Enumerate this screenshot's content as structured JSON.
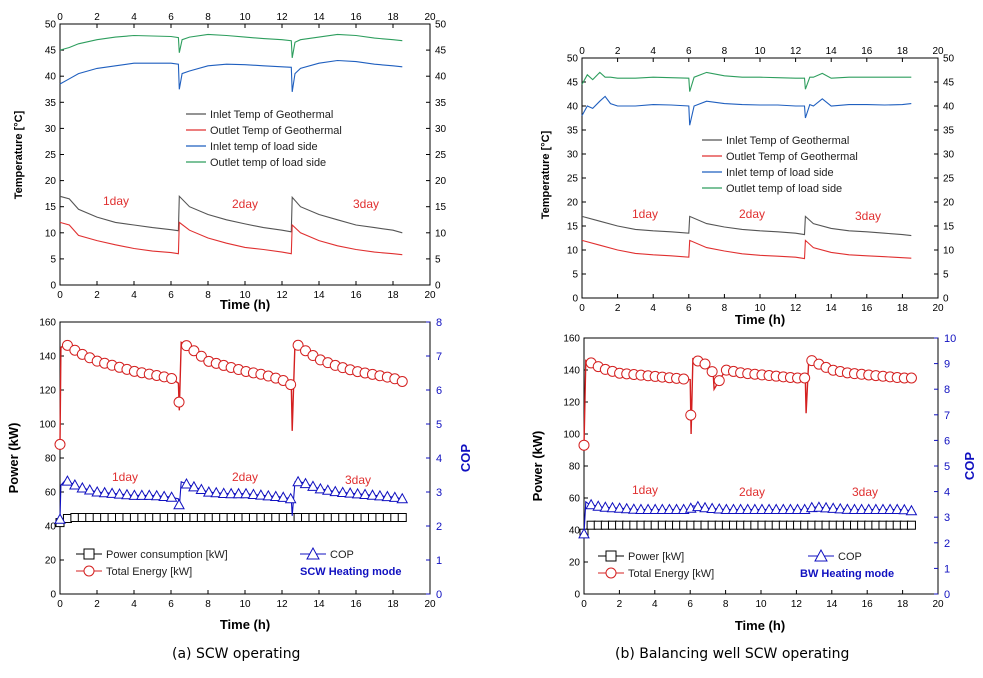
{
  "captions": {
    "a": "(a) SCW operating",
    "b": "(b) Balancing well SCW operating"
  },
  "colors": {
    "inlet_geo": "#555555",
    "outlet_geo": "#e03030",
    "inlet_load": "#1f5fbf",
    "outlet_load": "#2e9e5e",
    "cop": "#1010c0",
    "power": "#000000",
    "energy": "#d42020"
  },
  "chart_data": [
    {
      "id": "a_temp",
      "type": "line",
      "xlabel": "Time (h)",
      "ylabel": "Temperature [°C]",
      "xlim": [
        0,
        20
      ],
      "ylim": [
        0,
        50
      ],
      "x_ticks": [
        "0",
        "2",
        "4",
        "6",
        "8",
        "10",
        "12",
        "14",
        "16",
        "18",
        "20"
      ],
      "y_ticks": [
        "0",
        "5",
        "10",
        "15",
        "20",
        "25",
        "30",
        "35",
        "40",
        "45",
        "50"
      ],
      "legend": [
        "Inlet Temp of Geothermal",
        "Outlet Temp of Geothermal",
        "Inlet temp of load side",
        "Outlet temp of load side"
      ],
      "annotations": [
        "1day",
        "2day",
        "3day"
      ],
      "series": [
        {
          "name": "Inlet Temp of Geothermal",
          "x": [
            0,
            0.5,
            1,
            2,
            3,
            4,
            5,
            6,
            6.4,
            6.45,
            7,
            8,
            9,
            10,
            11,
            12,
            12.5,
            12.55,
            13,
            14,
            15,
            16,
            17,
            18,
            18.5
          ],
          "y": [
            17,
            16.5,
            14.5,
            13,
            12,
            11.5,
            11,
            10.6,
            10.4,
            17,
            15,
            13.5,
            12.5,
            11.7,
            11,
            10.5,
            10.2,
            16.8,
            15,
            13.5,
            12.5,
            11.5,
            11,
            10.5,
            10
          ]
        },
        {
          "name": "Outlet Temp of Geothermal",
          "x": [
            0,
            0.5,
            1,
            2,
            3,
            4,
            5,
            6,
            6.4,
            6.45,
            7,
            8,
            9,
            10,
            11,
            12,
            12.5,
            12.55,
            13,
            14,
            15,
            16,
            17,
            18,
            18.5
          ],
          "y": [
            12,
            11.5,
            9.5,
            8.5,
            7.7,
            7,
            6.5,
            6.2,
            6,
            12,
            10.5,
            9,
            8,
            7.2,
            6.8,
            6.3,
            6,
            11.5,
            10,
            8.5,
            7.5,
            6.8,
            6.3,
            6,
            5.8
          ]
        },
        {
          "name": "Inlet temp of load side",
          "x": [
            0,
            0.5,
            1,
            2,
            3,
            4,
            5,
            6,
            6.4,
            6.45,
            6.6,
            7,
            8,
            9,
            10,
            11,
            12,
            12.5,
            12.55,
            12.7,
            13,
            14,
            15,
            16,
            17,
            18,
            18.5
          ],
          "y": [
            38.5,
            39.5,
            40.5,
            41.5,
            42,
            42.5,
            42.5,
            42.5,
            42.3,
            37.5,
            40.5,
            41,
            42,
            42.3,
            42.2,
            42,
            41.8,
            41.7,
            37,
            40.5,
            41.5,
            42.5,
            43,
            42.8,
            42.3,
            42,
            41.8
          ]
        },
        {
          "name": "Outlet temp of load side",
          "x": [
            0,
            0.5,
            1,
            2,
            3,
            4,
            5,
            6,
            6.4,
            6.45,
            6.6,
            7,
            8,
            9,
            10,
            11,
            12,
            12.5,
            12.55,
            12.7,
            13,
            14,
            15,
            16,
            17,
            18,
            18.5
          ],
          "y": [
            45,
            45.5,
            46.2,
            47,
            47.5,
            47.8,
            47.7,
            47.6,
            47.4,
            44.5,
            47,
            47.5,
            48,
            47.8,
            47.5,
            47.2,
            47,
            46.8,
            43.5,
            46.5,
            47,
            47.5,
            48,
            47.8,
            47.3,
            47,
            46.8
          ]
        }
      ]
    },
    {
      "id": "b_temp",
      "type": "line",
      "xlabel": "Time (h)",
      "ylabel": "Temperature [°C]",
      "xlim": [
        0,
        20
      ],
      "ylim": [
        0,
        50
      ],
      "x_ticks": [
        "0",
        "2",
        "4",
        "6",
        "8",
        "10",
        "12",
        "14",
        "16",
        "18",
        "20"
      ],
      "y_ticks": [
        "0",
        "5",
        "10",
        "15",
        "20",
        "25",
        "30",
        "35",
        "40",
        "45",
        "50"
      ],
      "legend": [
        "Inlet Temp of Geothermal",
        "Outlet Temp of Geothermal",
        "Inlet temp of load side",
        "Outlet temp of load side"
      ],
      "annotations": [
        "1day",
        "2day",
        "3day"
      ],
      "series": [
        {
          "name": "Inlet Temp of Geothermal",
          "x": [
            0,
            1,
            2,
            3,
            4,
            5,
            6,
            6.05,
            7,
            8,
            9,
            10,
            11,
            12,
            12.5,
            12.55,
            13,
            14,
            15,
            16,
            17,
            18,
            18.5
          ],
          "y": [
            17,
            16,
            15,
            14.3,
            14,
            13.8,
            13.5,
            17,
            15.5,
            14.8,
            14.3,
            14,
            13.8,
            13.5,
            13.2,
            17,
            15.5,
            14.5,
            14,
            13.8,
            13.5,
            13.2,
            13
          ]
        },
        {
          "name": "Outlet Temp of Geothermal",
          "x": [
            0,
            1,
            2,
            3,
            4,
            5,
            6,
            6.05,
            7,
            8,
            9,
            10,
            11,
            12,
            12.5,
            12.55,
            13,
            14,
            15,
            16,
            17,
            18,
            18.5
          ],
          "y": [
            12,
            11,
            10,
            9.3,
            9,
            8.8,
            8.5,
            12,
            10.5,
            9.8,
            9.2,
            8.9,
            8.7,
            8.5,
            8.2,
            12,
            10.5,
            9.5,
            9,
            8.8,
            8.6,
            8.4,
            8.3
          ]
        },
        {
          "name": "Inlet temp of load side",
          "x": [
            0,
            0.3,
            0.6,
            1,
            1.3,
            1.6,
            2,
            3,
            4,
            5,
            6,
            6.05,
            6.3,
            7,
            8,
            9,
            10,
            11,
            12,
            12.5,
            12.55,
            12.8,
            13,
            13.5,
            14,
            15,
            16,
            17,
            18,
            18.5
          ],
          "y": [
            38,
            40,
            39.5,
            41,
            42,
            40.5,
            40,
            40,
            40.3,
            40.2,
            40,
            36,
            40,
            41,
            40.5,
            40.3,
            40.2,
            40.2,
            40,
            40,
            37.5,
            40.3,
            40,
            41.5,
            40,
            40.3,
            40.3,
            40.2,
            40.3,
            40.5
          ]
        },
        {
          "name": "Outlet temp of load side",
          "x": [
            0,
            0.3,
            0.6,
            1,
            1.3,
            1.6,
            2,
            3,
            4,
            5,
            6,
            6.05,
            6.3,
            7,
            8,
            9,
            10,
            11,
            12,
            12.5,
            12.55,
            12.8,
            13,
            13.5,
            14,
            15,
            16,
            17,
            18,
            18.5
          ],
          "y": [
            44.5,
            46.5,
            45.5,
            47,
            46,
            46,
            45.8,
            45.8,
            46,
            45.9,
            45.8,
            43,
            46,
            47,
            46.3,
            46,
            46,
            45.9,
            45.8,
            45.8,
            43.5,
            46,
            46,
            46.8,
            45.8,
            46,
            46,
            46,
            46,
            46
          ]
        }
      ]
    },
    {
      "id": "a_power",
      "type": "line",
      "xlabel": "Time (h)",
      "ylabel": "Power (kW)",
      "y2label": "COP",
      "xlim": [
        0,
        20
      ],
      "ylim": [
        0,
        160
      ],
      "y2lim": [
        0,
        8
      ],
      "x_ticks": [
        "0",
        "2",
        "4",
        "6",
        "8",
        "10",
        "12",
        "14",
        "16",
        "18",
        "20"
      ],
      "y_ticks": [
        "0",
        "20",
        "40",
        "60",
        "80",
        "100",
        "120",
        "140",
        "160"
      ],
      "y2_ticks": [
        "0",
        "1",
        "2",
        "3",
        "4",
        "5",
        "6",
        "7",
        "8"
      ],
      "legend": [
        "Power consumption [kW]",
        "Total Energy [kW]",
        "COP"
      ],
      "mode_label": "SCW Heating mode",
      "annotations": [
        "1day",
        "2day",
        "3day"
      ],
      "series": [
        {
          "name": "Power consumption [kW]",
          "axis": "left",
          "x": [
            0,
            0.5,
            1,
            2,
            3,
            4,
            5,
            6,
            6.5,
            7,
            8,
            9,
            10,
            11,
            12,
            12.5,
            13,
            14,
            15,
            16,
            17,
            18,
            18.5
          ],
          "y": [
            42,
            45,
            45,
            45,
            45,
            45,
            45,
            45,
            45,
            45,
            45,
            45,
            45,
            45,
            45,
            45,
            45,
            45,
            45,
            45,
            45,
            45,
            45
          ]
        },
        {
          "name": "Total Energy [kW]",
          "axis": "left",
          "x": [
            0,
            0.05,
            0.3,
            1,
            2,
            3,
            4,
            5,
            6,
            6.4,
            6.45,
            6.55,
            7,
            8,
            9,
            10,
            11,
            12,
            12.5,
            12.55,
            12.7,
            13,
            14,
            15,
            16,
            17,
            18,
            18.5
          ],
          "y": [
            88,
            145,
            147,
            142,
            137,
            134,
            131,
            129,
            127,
            124,
            108,
            148,
            145,
            137,
            134,
            131,
            129,
            126,
            123,
            96,
            148,
            145,
            138,
            134,
            131,
            129,
            127,
            125
          ]
        },
        {
          "name": "COP",
          "axis": "right",
          "x": [
            0,
            0.05,
            0.3,
            1,
            2,
            3,
            4,
            5,
            6,
            6.4,
            6.45,
            6.55,
            7,
            8,
            9,
            10,
            11,
            12,
            12.5,
            12.55,
            12.7,
            13,
            14,
            15,
            16,
            17,
            18,
            18.5
          ],
          "y": [
            2.2,
            3.2,
            3.35,
            3.15,
            3.0,
            2.95,
            2.9,
            2.9,
            2.85,
            2.8,
            2.55,
            3.3,
            3.2,
            3.0,
            2.95,
            2.95,
            2.9,
            2.85,
            2.8,
            2.3,
            3.3,
            3.3,
            3.1,
            3.0,
            2.95,
            2.9,
            2.85,
            2.8
          ]
        }
      ]
    },
    {
      "id": "b_power",
      "type": "line",
      "xlabel": "Time (h)",
      "ylabel": "Power (kW)",
      "y2label": "COP",
      "xlim": [
        0,
        20
      ],
      "ylim": [
        0,
        160
      ],
      "y2lim": [
        0,
        10
      ],
      "x_ticks": [
        "0",
        "2",
        "4",
        "6",
        "8",
        "10",
        "12",
        "14",
        "16",
        "18",
        "20"
      ],
      "y_ticks": [
        "0",
        "20",
        "40",
        "60",
        "80",
        "100",
        "120",
        "140",
        "160"
      ],
      "y2_ticks": [
        "0",
        "1",
        "2",
        "3",
        "4",
        "5",
        "6",
        "7",
        "8",
        "9",
        "10"
      ],
      "legend": [
        "Power [kW]",
        "Total Energy [kW]",
        "COP"
      ],
      "mode_label": "BW Heating mode",
      "annotations": [
        "1day",
        "2day",
        "3day"
      ],
      "series": [
        {
          "name": "Power [kW]",
          "axis": "left",
          "x": [
            0,
            0.3,
            1,
            2,
            3,
            4,
            5,
            6,
            7,
            8,
            9,
            10,
            11,
            12,
            13,
            14,
            15,
            16,
            17,
            18,
            18.5
          ],
          "y": [
            38,
            43,
            43,
            43,
            43,
            43,
            43,
            43,
            43,
            43,
            43,
            43,
            43,
            43,
            43,
            43,
            43,
            43,
            43,
            43,
            43
          ]
        },
        {
          "name": "Total Energy [kW]",
          "axis": "left",
          "x": [
            0,
            0.1,
            0.3,
            1,
            2,
            3,
            4,
            5,
            6,
            6.05,
            6.15,
            7,
            7.3,
            7.35,
            8,
            9,
            10,
            11,
            12,
            12.5,
            12.55,
            12.7,
            13,
            14,
            15,
            16,
            17,
            18,
            18.5
          ],
          "y": [
            93,
            146,
            145,
            141,
            138,
            137,
            136,
            135,
            134,
            100,
            147,
            143,
            138,
            128,
            140,
            138,
            137,
            136,
            135,
            135,
            113,
            147,
            145,
            140,
            138,
            137,
            136,
            135,
            135
          ]
        },
        {
          "name": "COP",
          "axis": "right",
          "x": [
            0,
            0.1,
            0.3,
            1,
            2,
            3,
            4,
            5,
            6,
            6.1,
            7,
            8,
            9,
            10,
            11,
            12,
            12.5,
            13,
            14,
            15,
            16,
            17,
            18,
            18.5
          ],
          "y": [
            2.35,
            3.6,
            3.5,
            3.4,
            3.35,
            3.3,
            3.3,
            3.3,
            3.3,
            3.45,
            3.35,
            3.3,
            3.3,
            3.3,
            3.3,
            3.3,
            3.3,
            3.4,
            3.35,
            3.3,
            3.3,
            3.3,
            3.3,
            3.25
          ]
        }
      ]
    }
  ]
}
